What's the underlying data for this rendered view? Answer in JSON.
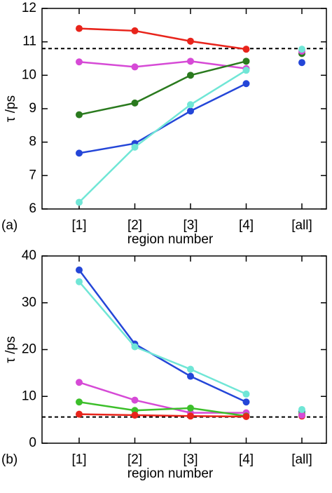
{
  "chart_data": [
    {
      "type": "line",
      "panel_label": "(a)",
      "xlabel": "region number",
      "ylabel": "τ /ps",
      "categories": [
        "[1]",
        "[2]",
        "[3]",
        "[4]",
        "[all]"
      ],
      "ylim": [
        6,
        12
      ],
      "yticks": [
        6,
        7,
        8,
        9,
        10,
        11,
        12
      ],
      "hline": {
        "value": 10.8,
        "style": "dashed",
        "color": "#000000"
      },
      "series": [
        {
          "color": "#e8241b",
          "values": [
            11.4,
            11.33,
            11.02,
            10.78,
            null
          ]
        },
        {
          "color": "#d64ad6",
          "values": [
            10.4,
            10.25,
            10.42,
            10.2,
            null
          ]
        },
        {
          "color": "#2a7a1e",
          "values": [
            8.82,
            9.17,
            10.0,
            10.42,
            null
          ]
        },
        {
          "color": "#2446d8",
          "values": [
            7.67,
            7.96,
            8.93,
            9.75,
            null
          ]
        },
        {
          "color": "#70e6d6",
          "values": [
            6.2,
            7.85,
            9.12,
            10.15,
            null
          ]
        },
        {
          "color": "#2446d8",
          "style": "markers",
          "values": [
            null,
            null,
            null,
            null,
            10.38
          ]
        },
        {
          "color": "#2a7a1e",
          "style": "markers",
          "values": [
            null,
            null,
            null,
            null,
            10.65
          ]
        },
        {
          "color": "#d64ad6",
          "style": "markers",
          "values": [
            null,
            null,
            null,
            null,
            10.72
          ]
        },
        {
          "color": "#70e6d6",
          "style": "markers",
          "values": [
            null,
            null,
            null,
            null,
            10.78
          ]
        }
      ]
    },
    {
      "type": "line",
      "panel_label": "(b)",
      "xlabel": "region number",
      "ylabel": "τ /ps",
      "categories": [
        "[1]",
        "[2]",
        "[3]",
        "[4]",
        "[all]"
      ],
      "ylim": [
        0,
        40
      ],
      "yticks": [
        0,
        10,
        20,
        30,
        40
      ],
      "hline": {
        "value": 5.6,
        "style": "dashed",
        "color": "#000000"
      },
      "series": [
        {
          "color": "#2446d8",
          "values": [
            37,
            21.2,
            14.3,
            8.8,
            null
          ]
        },
        {
          "color": "#70e6d6",
          "values": [
            34.5,
            20.6,
            15.8,
            10.5,
            null
          ]
        },
        {
          "color": "#d64ad6",
          "values": [
            13,
            9.2,
            6.5,
            6.5,
            null
          ]
        },
        {
          "color": "#3cbf2a",
          "values": [
            8.8,
            7.0,
            7.5,
            5.8,
            null
          ]
        },
        {
          "color": "#e8241b",
          "values": [
            6.2,
            6.0,
            5.8,
            5.7,
            null
          ]
        },
        {
          "color": "#2446d8",
          "style": "markers",
          "values": [
            null,
            null,
            null,
            null,
            6.8
          ]
        },
        {
          "color": "#3cbf2a",
          "style": "markers",
          "values": [
            null,
            null,
            null,
            null,
            6.3
          ]
        },
        {
          "color": "#e8241b",
          "style": "markers",
          "values": [
            null,
            null,
            null,
            null,
            5.8
          ]
        },
        {
          "color": "#d64ad6",
          "style": "markers",
          "values": [
            null,
            null,
            null,
            null,
            6.0
          ]
        },
        {
          "color": "#70e6d6",
          "style": "markers",
          "values": [
            null,
            null,
            null,
            null,
            7.2
          ]
        }
      ]
    }
  ]
}
